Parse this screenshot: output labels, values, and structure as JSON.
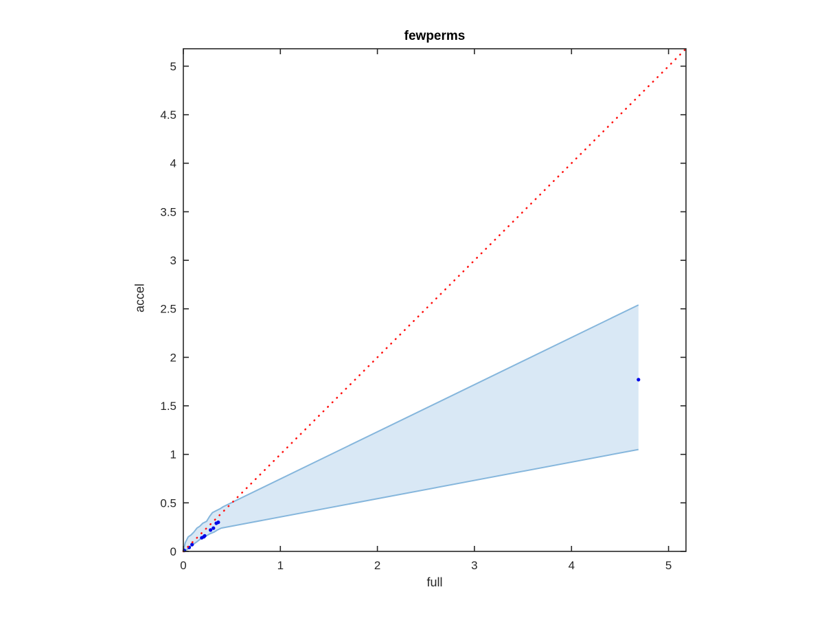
{
  "chart_data": {
    "type": "scatter",
    "title": "fewperms",
    "xlabel": "full",
    "ylabel": "accel",
    "xlim": [
      0,
      5.18
    ],
    "ylim": [
      0,
      5.18
    ],
    "x_ticks": [
      0,
      1,
      2,
      3,
      4,
      5
    ],
    "x_tick_labels": [
      "0",
      "1",
      "2",
      "3",
      "4",
      "5"
    ],
    "y_ticks": [
      0,
      0.5,
      1,
      1.5,
      2,
      2.5,
      3,
      3.5,
      4,
      4.5,
      5
    ],
    "y_tick_labels": [
      "0",
      "0.5",
      "1",
      "1.5",
      "2",
      "2.5",
      "3",
      "3.5",
      "4",
      "4.5",
      "5"
    ],
    "grid": false,
    "legend": null,
    "axis_color": "#262626",
    "background_color": "#ffffff",
    "series": [
      {
        "name": "confidence-band",
        "type": "band",
        "fill_color": "#d9e8f5",
        "edge_color": "#85b6dc",
        "upper": [
          [
            0,
            0
          ],
          [
            0.02,
            0.09
          ],
          [
            0.05,
            0.15
          ],
          [
            0.08,
            0.17
          ],
          [
            0.11,
            0.2
          ],
          [
            0.14,
            0.24
          ],
          [
            0.17,
            0.26
          ],
          [
            0.2,
            0.29
          ],
          [
            0.24,
            0.31
          ],
          [
            0.27,
            0.36
          ],
          [
            0.3,
            0.4
          ],
          [
            0.34,
            0.42
          ],
          [
            0.38,
            0.44
          ],
          [
            0.41,
            0.46
          ],
          [
            4.69,
            2.54
          ]
        ],
        "lower": [
          [
            0,
            0
          ],
          [
            0.04,
            0.02
          ],
          [
            0.07,
            0.05
          ],
          [
            0.1,
            0.07
          ],
          [
            0.14,
            0.1
          ],
          [
            0.18,
            0.13
          ],
          [
            0.22,
            0.15
          ],
          [
            0.27,
            0.18
          ],
          [
            0.32,
            0.2
          ],
          [
            0.35,
            0.22
          ],
          [
            0.39,
            0.24
          ],
          [
            4.69,
            1.05
          ]
        ]
      },
      {
        "name": "observations",
        "type": "scatter",
        "color": "#0008e6",
        "marker": "filled-circle",
        "points": [
          [
            0.01,
            0.01
          ],
          [
            0.06,
            0.04
          ],
          [
            0.09,
            0.07
          ],
          [
            0.19,
            0.14
          ],
          [
            0.21,
            0.15
          ],
          [
            0.22,
            0.16
          ],
          [
            0.28,
            0.22
          ],
          [
            0.31,
            0.24
          ],
          [
            0.34,
            0.29
          ],
          [
            0.36,
            0.3
          ],
          [
            4.69,
            1.77
          ]
        ]
      },
      {
        "name": "identity-line",
        "type": "dotted-line",
        "color": "#ff1412",
        "points": [
          [
            0,
            0
          ],
          [
            5.18,
            5.18
          ]
        ]
      }
    ]
  }
}
